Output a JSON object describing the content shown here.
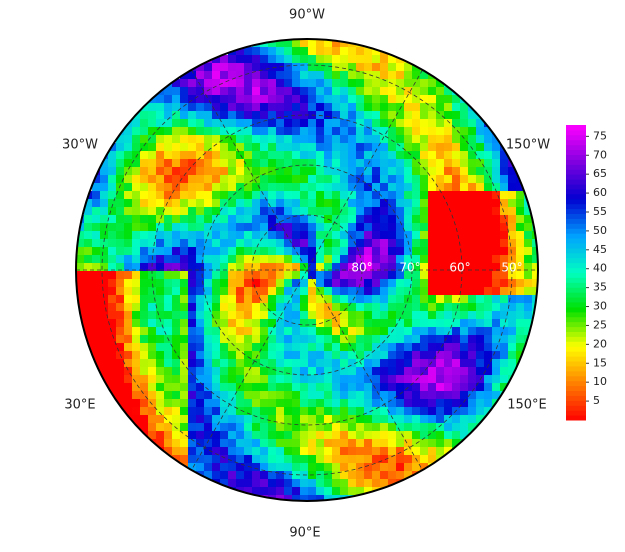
{
  "map": {
    "longitude_labels": [
      "90°W",
      "30°W",
      "150°W",
      "30°E",
      "150°E",
      "90°E"
    ],
    "latitude_labels": [
      "80°",
      "70°",
      "60°",
      "50°"
    ]
  },
  "colorbar": {
    "range": [
      0,
      78
    ],
    "ticks": [
      5,
      10,
      15,
      20,
      25,
      30,
      35,
      40,
      45,
      50,
      55,
      60,
      65,
      70,
      75
    ],
    "colors": [
      "#ff0000",
      "#ff8000",
      "#ffff00",
      "#00e000",
      "#00ffc0",
      "#00a0ff",
      "#0000d0",
      "#8000e0",
      "#ff00ff"
    ]
  }
}
